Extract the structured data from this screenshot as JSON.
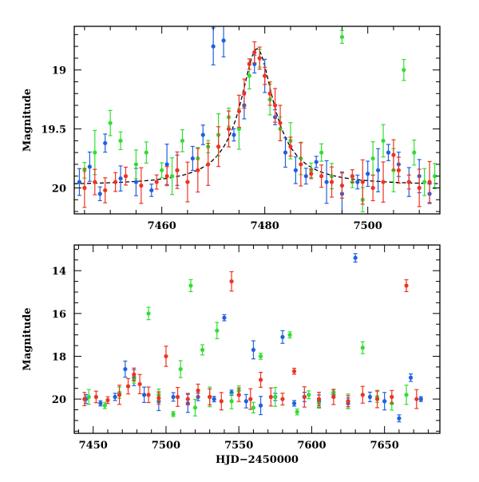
{
  "chart_data": [
    {
      "type": "scatter",
      "title": "",
      "xlabel": "",
      "ylabel": "Magnitude",
      "xlim": [
        7443,
        7514
      ],
      "ylim": [
        20.22,
        18.63
      ],
      "y_inverted": true,
      "xticks": [
        7460,
        7480,
        7500
      ],
      "yticks": [
        19,
        19.5,
        20
      ],
      "ytick_labels": [
        "19",
        "19.5",
        "20"
      ],
      "error_bars": true,
      "model_curve": {
        "style": "dashed",
        "color": "#000000",
        "peak_x": 7478.5,
        "peak_y": 18.82,
        "baseline_y": 19.98
      },
      "series": [
        {
          "color": "#2060e0",
          "marker": "circle",
          "points": [
            [
              7444,
              19.95
            ],
            [
              7446,
              19.82
            ],
            [
              7448,
              20.05
            ],
            [
              7449,
              19.62
            ],
            [
              7452,
              19.92
            ],
            [
              7455,
              19.95
            ],
            [
              7458,
              20.02
            ],
            [
              7461,
              19.8
            ],
            [
              7463,
              19.85
            ],
            [
              7466,
              19.75
            ],
            [
              7468,
              19.55
            ],
            [
              7470,
              18.8
            ],
            [
              7472,
              18.75
            ],
            [
              7474,
              19.55
            ],
            [
              7476,
              19.3
            ],
            [
              7478,
              18.95
            ],
            [
              7480,
              19.05
            ],
            [
              7482,
              19.4
            ],
            [
              7484,
              19.7
            ],
            [
              7486,
              19.85
            ],
            [
              7488,
              19.9
            ],
            [
              7490,
              19.78
            ],
            [
              7492,
              19.95
            ],
            [
              7495,
              20.05
            ],
            [
              7498,
              19.95
            ],
            [
              7500,
              19.88
            ],
            [
              7502,
              19.85
            ],
            [
              7504,
              19.7
            ],
            [
              7506,
              19.8
            ],
            [
              7508,
              19.95
            ],
            [
              7510,
              19.9
            ],
            [
              7512,
              20.05
            ]
          ]
        },
        {
          "color": "#33dd33",
          "marker": "circle",
          "points": [
            [
              7445,
              19.85
            ],
            [
              7447,
              19.7
            ],
            [
              7450,
              19.45
            ],
            [
              7452,
              19.6
            ],
            [
              7455,
              19.8
            ],
            [
              7457,
              19.7
            ],
            [
              7460,
              19.85
            ],
            [
              7462,
              19.9
            ],
            [
              7464,
              19.6
            ],
            [
              7467,
              19.75
            ],
            [
              7469,
              19.65
            ],
            [
              7471,
              19.55
            ],
            [
              7473,
              19.4
            ],
            [
              7475,
              19.5
            ],
            [
              7477,
              19.05
            ],
            [
              7479,
              18.9
            ],
            [
              7481,
              19.25
            ],
            [
              7483,
              19.5
            ],
            [
              7485,
              19.6
            ],
            [
              7487,
              19.75
            ],
            [
              7489,
              19.85
            ],
            [
              7491,
              19.7
            ],
            [
              7493,
              19.9
            ],
            [
              7495,
              18.72
            ],
            [
              7497,
              19.95
            ],
            [
              7499,
              20.1
            ],
            [
              7501,
              19.75
            ],
            [
              7503,
              19.6
            ],
            [
              7505,
              19.85
            ],
            [
              7507,
              19.0
            ],
            [
              7509,
              19.7
            ],
            [
              7511,
              19.95
            ],
            [
              7513,
              19.9
            ]
          ]
        },
        {
          "color": "#ee3322",
          "marker": "circle",
          "points": [
            [
              7445,
              20.0
            ],
            [
              7447,
              19.95
            ],
            [
              7449,
              20.02
            ],
            [
              7451,
              19.95
            ],
            [
              7453,
              19.9
            ],
            [
              7456,
              19.98
            ],
            [
              7459,
              19.95
            ],
            [
              7461,
              19.9
            ],
            [
              7463,
              19.85
            ],
            [
              7465,
              19.95
            ],
            [
              7467,
              19.85
            ],
            [
              7469,
              19.8
            ],
            [
              7471,
              19.65
            ],
            [
              7473,
              19.5
            ],
            [
              7475,
              19.35
            ],
            [
              7476,
              19.2
            ],
            [
              7477,
              18.95
            ],
            [
              7478,
              18.85
            ],
            [
              7479,
              18.9
            ],
            [
              7480,
              19.05
            ],
            [
              7481,
              19.2
            ],
            [
              7482,
              19.3
            ],
            [
              7483,
              19.45
            ],
            [
              7485,
              19.65
            ],
            [
              7487,
              19.8
            ],
            [
              7489,
              19.88
            ],
            [
              7491,
              19.9
            ],
            [
              7493,
              19.95
            ],
            [
              7495,
              19.98
            ],
            [
              7497,
              19.9
            ],
            [
              7499,
              19.95
            ],
            [
              7501,
              20.0
            ],
            [
              7503,
              19.95
            ],
            [
              7505,
              19.72
            ],
            [
              7506,
              19.85
            ],
            [
              7508,
              19.95
            ],
            [
              7510,
              20.0
            ],
            [
              7512,
              19.95
            ]
          ]
        }
      ]
    },
    {
      "type": "scatter",
      "title": "",
      "xlabel": "HJD−2450000",
      "ylabel": "Magnitude",
      "xlim": [
        7437,
        7688
      ],
      "ylim": [
        21.6,
        12.8
      ],
      "y_inverted": true,
      "xticks": [
        7450,
        7500,
        7550,
        7600,
        7650
      ],
      "yticks": [
        14,
        16,
        18,
        20
      ],
      "ytick_labels": [
        "14",
        "16",
        "18",
        "20"
      ],
      "error_bars": true,
      "series": [
        {
          "color": "#2060e0",
          "marker": "circle",
          "points": [
            [
              7445,
              20.0
            ],
            [
              7455,
              20.2
            ],
            [
              7465,
              19.9
            ],
            [
              7472,
              18.6
            ],
            [
              7478,
              19.0
            ],
            [
              7485,
              19.8
            ],
            [
              7495,
              20.1
            ],
            [
              7505,
              19.9
            ],
            [
              7515,
              20.2
            ],
            [
              7522,
              19.9
            ],
            [
              7533,
              20.0
            ],
            [
              7540,
              16.2
            ],
            [
              7545,
              19.7
            ],
            [
              7555,
              20.1
            ],
            [
              7560,
              17.7
            ],
            [
              7565,
              20.3
            ],
            [
              7575,
              19.9
            ],
            [
              7580,
              17.1
            ],
            [
              7588,
              20.2
            ],
            [
              7595,
              19.9
            ],
            [
              7605,
              20.1
            ],
            [
              7615,
              19.8
            ],
            [
              7625,
              20.2
            ],
            [
              7630,
              13.4
            ],
            [
              7640,
              19.9
            ],
            [
              7650,
              20.1
            ],
            [
              7660,
              20.9
            ],
            [
              7668,
              19.0
            ],
            [
              7675,
              20.0
            ]
          ]
        },
        {
          "color": "#33dd33",
          "marker": "circle",
          "points": [
            [
              7447,
              19.9
            ],
            [
              7458,
              20.3
            ],
            [
              7468,
              19.7
            ],
            [
              7478,
              19.1
            ],
            [
              7488,
              16.0
            ],
            [
              7495,
              19.8
            ],
            [
              7505,
              20.7
            ],
            [
              7510,
              18.6
            ],
            [
              7517,
              14.7
            ],
            [
              7520,
              20.4
            ],
            [
              7525,
              17.7
            ],
            [
              7530,
              19.9
            ],
            [
              7535,
              16.8
            ],
            [
              7545,
              20.1
            ],
            [
              7550,
              19.6
            ],
            [
              7560,
              20.4
            ],
            [
              7565,
              18.0
            ],
            [
              7575,
              19.9
            ],
            [
              7585,
              17.0
            ],
            [
              7590,
              20.6
            ],
            [
              7598,
              19.8
            ],
            [
              7605,
              20.2
            ],
            [
              7615,
              19.7
            ],
            [
              7625,
              20.1
            ],
            [
              7635,
              17.6
            ],
            [
              7645,
              19.9
            ],
            [
              7655,
              20.2
            ],
            [
              7665,
              19.8
            ]
          ]
        },
        {
          "color": "#ee3322",
          "marker": "circle",
          "points": [
            [
              7444,
              20.0
            ],
            [
              7452,
              19.9
            ],
            [
              7460,
              20.05
            ],
            [
              7468,
              19.8
            ],
            [
              7474,
              19.4
            ],
            [
              7478,
              18.85
            ],
            [
              7482,
              19.3
            ],
            [
              7488,
              19.8
            ],
            [
              7495,
              19.95
            ],
            [
              7500,
              18.0
            ],
            [
              7508,
              19.9
            ],
            [
              7515,
              20.0
            ],
            [
              7522,
              19.6
            ],
            [
              7530,
              19.9
            ],
            [
              7538,
              20.1
            ],
            [
              7545,
              14.5
            ],
            [
              7550,
              19.8
            ],
            [
              7558,
              20.0
            ],
            [
              7565,
              19.1
            ],
            [
              7572,
              19.9
            ],
            [
              7580,
              20.0
            ],
            [
              7588,
              18.7
            ],
            [
              7595,
              19.9
            ],
            [
              7605,
              20.0
            ],
            [
              7615,
              19.9
            ],
            [
              7625,
              20.1
            ],
            [
              7635,
              19.8
            ],
            [
              7645,
              20.0
            ],
            [
              7655,
              19.9
            ],
            [
              7665,
              14.7
            ],
            [
              7672,
              20.0
            ]
          ]
        }
      ]
    }
  ]
}
